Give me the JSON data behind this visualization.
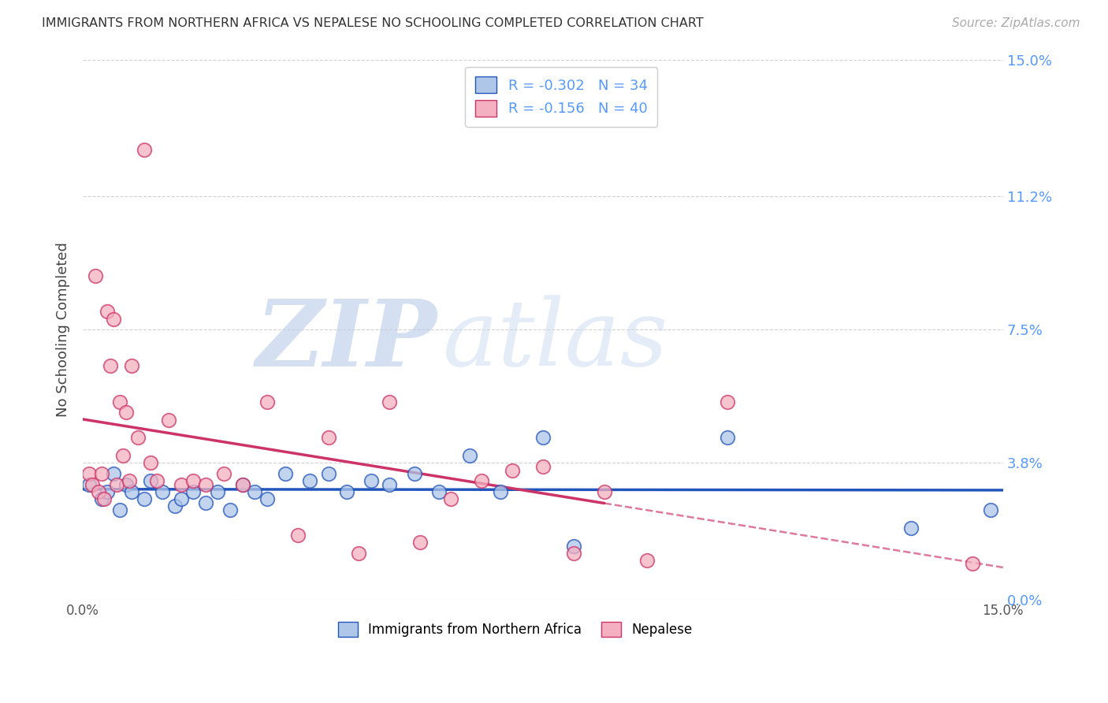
{
  "title": "IMMIGRANTS FROM NORTHERN AFRICA VS NEPALESE NO SCHOOLING COMPLETED CORRELATION CHART",
  "source": "Source: ZipAtlas.com",
  "ylabel": "No Schooling Completed",
  "watermark_zip": "ZIP",
  "watermark_atlas": "atlas",
  "blue_color": "#aec6e8",
  "pink_color": "#f4b0c0",
  "line_blue_color": "#2255bb",
  "line_pink_color": "#cc3366",
  "right_axis_color": "#5599ff",
  "legend_r_blue": "-0.302",
  "legend_n_blue": "34",
  "legend_r_pink": "-0.156",
  "legend_n_pink": "40",
  "ytick_values": [
    0.0,
    3.8,
    7.5,
    11.2,
    15.0
  ],
  "ytick_labels": [
    "0.0%",
    "3.8%",
    "7.5%",
    "11.2%",
    "15.0%"
  ],
  "xtick_positions": [
    0.0,
    3.75,
    7.5,
    11.25,
    15.0
  ],
  "xtick_labels": [
    "0.0%",
    "",
    "",
    "",
    "15.0%"
  ],
  "xlim": [
    0.0,
    15.0
  ],
  "ylim": [
    0.0,
    15.0
  ],
  "blue_x": [
    0.1,
    0.3,
    0.4,
    0.5,
    0.6,
    0.7,
    0.8,
    1.0,
    1.1,
    1.3,
    1.5,
    1.6,
    1.8,
    2.0,
    2.2,
    2.4,
    2.6,
    2.8,
    3.0,
    3.3,
    3.7,
    4.0,
    4.3,
    4.7,
    5.0,
    5.4,
    5.8,
    6.3,
    6.8,
    7.5,
    8.0,
    10.5,
    13.5,
    14.8
  ],
  "blue_y": [
    3.2,
    2.8,
    3.0,
    3.5,
    2.5,
    3.2,
    3.0,
    2.8,
    3.3,
    3.0,
    2.6,
    2.8,
    3.0,
    2.7,
    3.0,
    2.5,
    3.2,
    3.0,
    2.8,
    3.5,
    3.3,
    3.5,
    3.0,
    3.3,
    3.2,
    3.5,
    3.0,
    4.0,
    3.0,
    4.5,
    1.5,
    4.5,
    2.0,
    2.5
  ],
  "pink_x": [
    0.1,
    0.15,
    0.2,
    0.25,
    0.3,
    0.35,
    0.4,
    0.45,
    0.5,
    0.55,
    0.6,
    0.65,
    0.7,
    0.75,
    0.8,
    0.9,
    1.0,
    1.1,
    1.2,
    1.4,
    1.6,
    1.8,
    2.0,
    2.3,
    2.6,
    3.0,
    3.5,
    4.0,
    4.5,
    5.0,
    5.5,
    6.0,
    6.5,
    7.0,
    7.5,
    8.0,
    8.5,
    9.2,
    10.5,
    14.5
  ],
  "pink_y": [
    3.5,
    3.2,
    9.0,
    3.0,
    3.5,
    2.8,
    8.0,
    6.5,
    7.8,
    3.2,
    5.5,
    4.0,
    5.2,
    3.3,
    6.5,
    4.5,
    12.5,
    3.8,
    3.3,
    5.0,
    3.2,
    3.3,
    3.2,
    3.5,
    3.2,
    5.5,
    1.8,
    4.5,
    1.3,
    5.5,
    1.6,
    2.8,
    3.3,
    3.6,
    3.7,
    1.3,
    3.0,
    1.1,
    5.5,
    1.0
  ],
  "pink_solid_end": 8.5,
  "pink_dash_start": 8.5
}
